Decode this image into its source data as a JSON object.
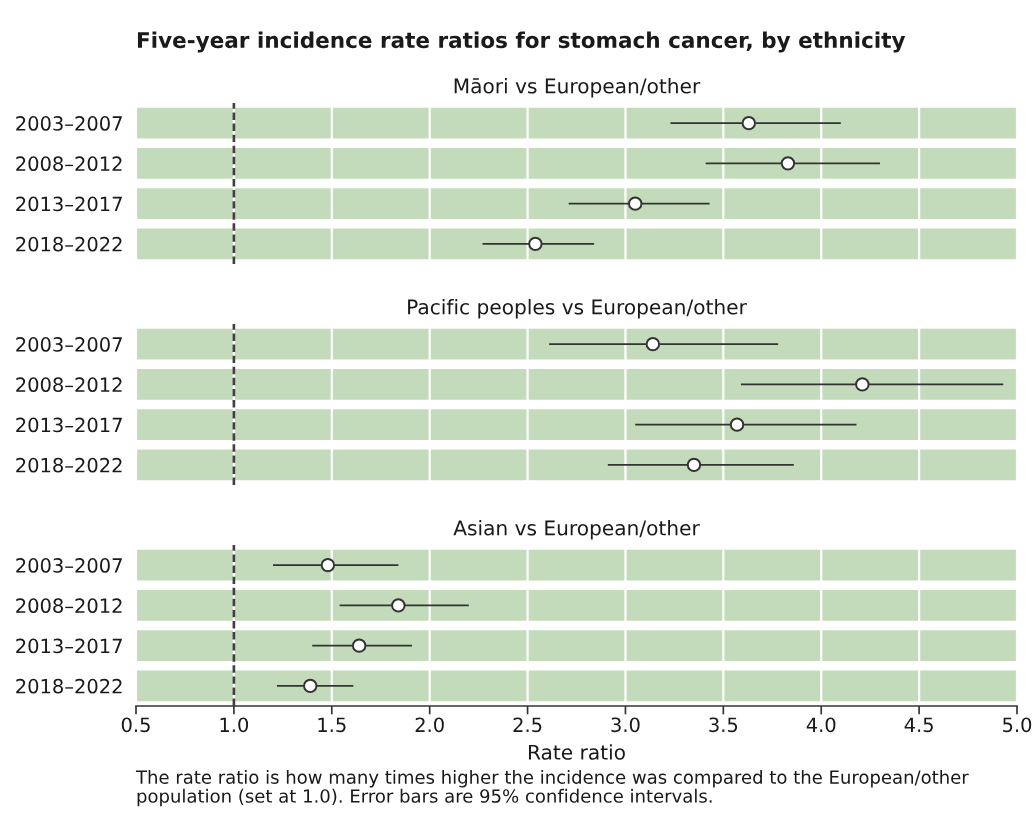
{
  "chart_data": [
    {
      "type": "scatter",
      "orientation": "horizontal",
      "title": "Five-year incidence rate ratios for stomach cancer, by ethnicity",
      "subtitle": "Māori vs European/other",
      "categories": [
        "2003–2007",
        "2008–2012",
        "2013–2017",
        "2018–2022"
      ],
      "values": [
        3.63,
        3.83,
        3.05,
        2.54
      ],
      "errors": [
        [
          3.23,
          4.1
        ],
        [
          3.41,
          4.3
        ],
        [
          2.71,
          3.43
        ],
        [
          2.27,
          2.84
        ]
      ],
      "color": "#ffffff",
      "marker": "circle",
      "xlim": [
        0.5,
        5
      ],
      "xticks": [
        0.5,
        1,
        1.5,
        2,
        2.5,
        3,
        3.5,
        4,
        4.5,
        5
      ],
      "grid": "x",
      "ref_lines": [
        {
          "axis": "x",
          "value": 1,
          "color": "#404040",
          "line_style": "dashed"
        }
      ],
      "tick_labels": "y"
    },
    {
      "type": "scatter",
      "orientation": "horizontal",
      "subtitle": "Pacific peoples vs European/other",
      "categories": [
        "2003–2007",
        "2008–2012",
        "2013–2017",
        "2018–2022"
      ],
      "values": [
        3.14,
        4.21,
        3.57,
        3.35
      ],
      "errors": [
        [
          2.61,
          3.78
        ],
        [
          3.59,
          4.93
        ],
        [
          3.05,
          4.18
        ],
        [
          2.91,
          3.86
        ]
      ],
      "color": "#ffffff",
      "marker": "circle",
      "xlim": [
        0.5,
        5
      ],
      "xticks": [
        0.5,
        1,
        1.5,
        2,
        2.5,
        3,
        3.5,
        4,
        4.5,
        5
      ],
      "grid": "x",
      "ref_lines": [
        {
          "axis": "x",
          "value": 1,
          "color": "#404040",
          "line_style": "dashed"
        }
      ],
      "tick_labels": "y"
    },
    {
      "type": "scatter",
      "orientation": "horizontal",
      "subtitle": "Asian vs European/other",
      "categories": [
        "2003–2007",
        "2008–2012",
        "2013–2017",
        "2018–2022"
      ],
      "values": [
        1.48,
        1.84,
        1.64,
        1.39
      ],
      "errors": [
        [
          1.2,
          1.84
        ],
        [
          1.54,
          2.2
        ],
        [
          1.4,
          1.91
        ],
        [
          1.22,
          1.61
        ]
      ],
      "color": "#ffffff",
      "marker": "circle",
      "xlim": [
        0.5,
        5
      ],
      "xticks": [
        0.5,
        {
          "value": 1,
          "label": "1.0"
        },
        1.5,
        {
          "value": 2,
          "label": "2.0"
        },
        2.5,
        {
          "value": 3,
          "label": "3.0"
        },
        3.5,
        {
          "value": 4,
          "label": "4.0"
        },
        4.5,
        {
          "value": 5,
          "label": "5.0"
        }
      ],
      "grid": "x",
      "ref_lines": [
        {
          "axis": "x",
          "value": 1,
          "color": "#404040",
          "line_style": "dashed"
        }
      ],
      "xlabel": "Rate ratio",
      "annotations": [
        "The rate ratio is how many times higher the incidence was compared to the European/other population (set at 1.0). Error bars are 95% confidence intervals."
      ]
    }
  ]
}
